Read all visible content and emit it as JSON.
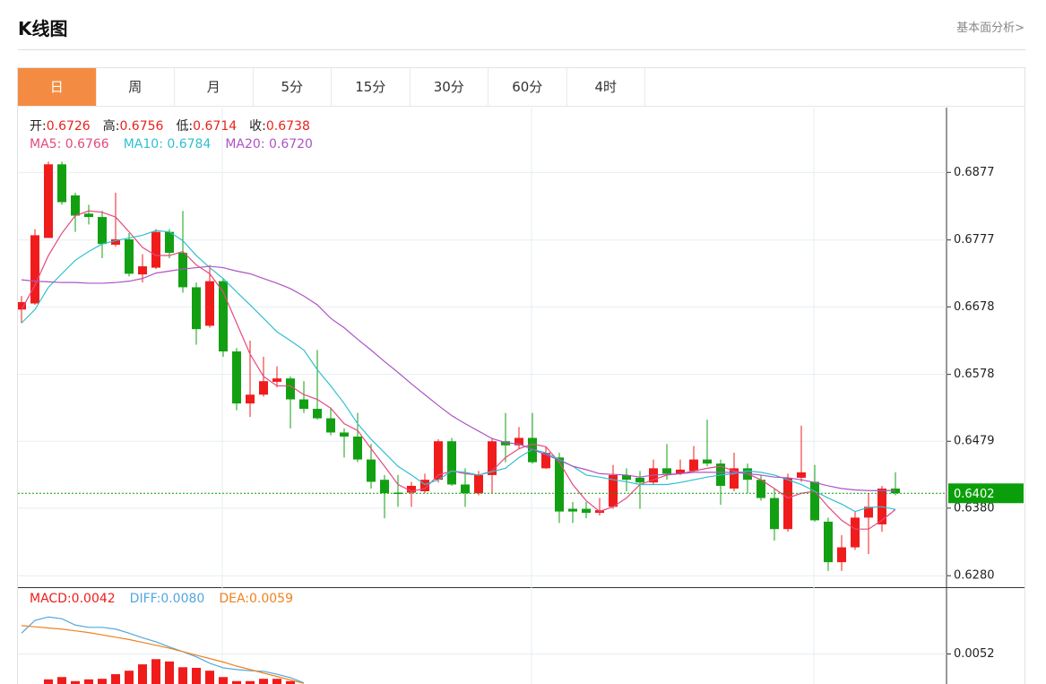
{
  "header": {
    "title": "K线图",
    "link": "基本面分析>"
  },
  "tabs": {
    "items": [
      "日",
      "周",
      "月",
      "5分",
      "15分",
      "30分",
      "60分",
      "4时"
    ],
    "active": 0
  },
  "ohlc_info": [
    {
      "label": "开:",
      "value": "0.6726"
    },
    {
      "label": "高:",
      "value": "0.6756"
    },
    {
      "label": "低:",
      "value": "0.6714"
    },
    {
      "label": "收:",
      "value": "0.6738"
    }
  ],
  "chart_data": [
    {
      "type": "candlestick",
      "up_color": "#f01c1c",
      "down_color": "#12a012",
      "ylim": [
        0.6263,
        0.6973
      ],
      "yticks": [
        {
          "value": 0.628,
          "label": "0.6280"
        },
        {
          "value": 0.638,
          "label": "0.6380"
        },
        0.6479,
        0.6578,
        0.6678,
        0.6777,
        0.6877
      ],
      "grid": true,
      "current_price": 0.6402,
      "current_color": "#0a9f0a",
      "open": [
        0.6674,
        0.6683,
        0.678,
        0.6889,
        0.6843,
        0.6816,
        0.6811,
        0.677,
        0.6778,
        0.6726,
        0.6736,
        0.6789,
        0.6758,
        0.6707,
        0.665,
        0.6716,
        0.6612,
        0.6535,
        0.6548,
        0.6567,
        0.6572,
        0.6541,
        0.6527,
        0.6513,
        0.6492,
        0.6486,
        0.6452,
        0.6422,
        0.6403,
        0.6403,
        0.6405,
        0.6422,
        0.6479,
        0.6415,
        0.6402,
        0.6429,
        0.6479,
        0.6473,
        0.6484,
        0.6439,
        0.6455,
        0.6379,
        0.6379,
        0.6373,
        0.6382,
        0.6429,
        0.6425,
        0.6418,
        0.6439,
        0.6431,
        0.6435,
        0.6452,
        0.6446,
        0.6409,
        0.6439,
        0.6422,
        0.6395,
        0.6349,
        0.6425,
        0.6419,
        0.636,
        0.63,
        0.6322,
        0.6366,
        0.6356,
        0.6409
      ],
      "high": [
        0.6694,
        0.6793,
        0.6893,
        0.6893,
        0.6847,
        0.6829,
        0.682,
        0.6847,
        0.6787,
        0.6756,
        0.6793,
        0.6793,
        0.682,
        0.6714,
        0.674,
        0.672,
        0.6617,
        0.6628,
        0.6604,
        0.659,
        0.6575,
        0.6568,
        0.6614,
        0.6528,
        0.6498,
        0.6521,
        0.6475,
        0.6429,
        0.6429,
        0.6419,
        0.6431,
        0.6482,
        0.6484,
        0.6439,
        0.6435,
        0.6484,
        0.6521,
        0.65,
        0.6521,
        0.6471,
        0.6462,
        0.6389,
        0.6389,
        0.6395,
        0.6444,
        0.6439,
        0.6435,
        0.6452,
        0.6475,
        0.6452,
        0.6472,
        0.6511,
        0.6452,
        0.6462,
        0.6446,
        0.6429,
        0.6409,
        0.6431,
        0.6502,
        0.6444,
        0.6366,
        0.634,
        0.6375,
        0.6402,
        0.6413,
        0.6433
      ],
      "low": [
        0.6654,
        0.6681,
        0.678,
        0.6829,
        0.6789,
        0.68,
        0.675,
        0.6767,
        0.6723,
        0.6714,
        0.6734,
        0.675,
        0.6699,
        0.6622,
        0.6647,
        0.6604,
        0.6525,
        0.6515,
        0.6545,
        0.6559,
        0.6498,
        0.6521,
        0.6511,
        0.6488,
        0.6455,
        0.6448,
        0.6409,
        0.6365,
        0.6382,
        0.6382,
        0.6402,
        0.6418,
        0.6413,
        0.6382,
        0.6399,
        0.6402,
        0.6448,
        0.6467,
        0.6446,
        0.6438,
        0.6358,
        0.6358,
        0.6365,
        0.6369,
        0.6379,
        0.6405,
        0.6379,
        0.6415,
        0.6422,
        0.6429,
        0.6433,
        0.6442,
        0.6385,
        0.6405,
        0.6402,
        0.6391,
        0.6332,
        0.6345,
        0.6419,
        0.636,
        0.6287,
        0.6287,
        0.6318,
        0.6312,
        0.6345,
        0.6399
      ],
      "close": [
        0.6685,
        0.6784,
        0.6889,
        0.6833,
        0.6813,
        0.6811,
        0.6771,
        0.6778,
        0.6727,
        0.6738,
        0.6789,
        0.6758,
        0.6707,
        0.6645,
        0.6716,
        0.6612,
        0.6535,
        0.6548,
        0.6568,
        0.6572,
        0.6541,
        0.6527,
        0.6513,
        0.6492,
        0.6486,
        0.6452,
        0.6419,
        0.6402,
        0.6401,
        0.6413,
        0.6422,
        0.6479,
        0.6415,
        0.6402,
        0.6429,
        0.6479,
        0.6473,
        0.6484,
        0.6448,
        0.6462,
        0.6375,
        0.6375,
        0.6373,
        0.6377,
        0.6429,
        0.6422,
        0.6418,
        0.6439,
        0.6431,
        0.6437,
        0.6452,
        0.6446,
        0.6413,
        0.6439,
        0.6422,
        0.6395,
        0.6349,
        0.6425,
        0.6433,
        0.6362,
        0.63,
        0.6322,
        0.6366,
        0.6382,
        0.6409,
        0.6402
      ],
      "series": [
        {
          "legend": "MA5: 0.6766",
          "color": "#e5497e",
          "values": [
            0.6674,
            0.671,
            0.6754,
            0.6787,
            0.6813,
            0.682,
            0.6818,
            0.6811,
            0.6789,
            0.6766,
            0.6754,
            0.6754,
            0.676,
            0.674,
            0.6727,
            0.67,
            0.6654,
            0.6608,
            0.6575,
            0.6561,
            0.6561,
            0.6548,
            0.6541,
            0.6528,
            0.6505,
            0.6495,
            0.6468,
            0.6442,
            0.6415,
            0.6405,
            0.6409,
            0.6429,
            0.6435,
            0.6431,
            0.6429,
            0.6435,
            0.6455,
            0.6468,
            0.6475,
            0.6471,
            0.6448,
            0.6415,
            0.6391,
            0.6375,
            0.6382,
            0.6395,
            0.6415,
            0.6422,
            0.6429,
            0.6431,
            0.6435,
            0.6439,
            0.6442,
            0.6435,
            0.6431,
            0.6422,
            0.6409,
            0.6395,
            0.6402,
            0.6405,
            0.6382,
            0.6362,
            0.6349,
            0.6349,
            0.6362,
            0.6378
          ]
        },
        {
          "legend": "MA10: 0.6784",
          "color": "#2fc0d0",
          "values": [
            0.6654,
            0.6674,
            0.6707,
            0.6727,
            0.6747,
            0.676,
            0.6771,
            0.6776,
            0.678,
            0.6784,
            0.6791,
            0.6789,
            0.6776,
            0.6754,
            0.6736,
            0.672,
            0.67,
            0.6681,
            0.6661,
            0.6641,
            0.6628,
            0.6614,
            0.6585,
            0.6561,
            0.6535,
            0.6505,
            0.6482,
            0.6462,
            0.6442,
            0.6429,
            0.6415,
            0.6422,
            0.6435,
            0.6433,
            0.6429,
            0.6434,
            0.6439,
            0.6455,
            0.6467,
            0.6462,
            0.6452,
            0.6442,
            0.6429,
            0.6426,
            0.6422,
            0.6419,
            0.6415,
            0.6415,
            0.6415,
            0.6418,
            0.6422,
            0.6426,
            0.6429,
            0.6431,
            0.6435,
            0.6433,
            0.6429,
            0.6422,
            0.6415,
            0.6405,
            0.6395,
            0.6386,
            0.6375,
            0.6381,
            0.6382,
            0.6378
          ]
        },
        {
          "legend": "MA20: 0.6720",
          "color": "#ad55c4",
          "values": [
            0.6718,
            0.6716,
            0.6715,
            0.6714,
            0.6714,
            0.6713,
            0.6713,
            0.6714,
            0.6716,
            0.672,
            0.6728,
            0.6731,
            0.6734,
            0.6736,
            0.6738,
            0.6736,
            0.6731,
            0.6727,
            0.672,
            0.6713,
            0.6705,
            0.6694,
            0.6681,
            0.6661,
            0.6647,
            0.663,
            0.6614,
            0.6597,
            0.6581,
            0.6564,
            0.6548,
            0.6532,
            0.6517,
            0.6505,
            0.6494,
            0.6483,
            0.6477,
            0.6475,
            0.6467,
            0.6459,
            0.6451,
            0.6442,
            0.6437,
            0.6431,
            0.643,
            0.6429,
            0.6426,
            0.6429,
            0.643,
            0.6431,
            0.6433,
            0.6433,
            0.6433,
            0.6433,
            0.6431,
            0.6429,
            0.6426,
            0.6425,
            0.6422,
            0.6418,
            0.6413,
            0.6409,
            0.6407,
            0.6406,
            0.6406,
            0.6406
          ]
        }
      ]
    },
    {
      "type": "macd",
      "ylim": [
        0,
        0.0166
      ],
      "yticks": [
        0.0052
      ],
      "grid": true,
      "bars": {
        "legend": "MACD:0.0042",
        "color": "#f01c1c",
        "values": [
          null,
          null,
          0.0008,
          0.0012,
          0.0005,
          0.0008,
          0.0009,
          0.0017,
          0.0023,
          0.0034,
          0.0043,
          0.0039,
          0.0029,
          0.0028,
          0.0023,
          0.0012,
          0.0005,
          0.0005,
          0.0009,
          0.0009,
          0.0005,
          null
        ]
      },
      "series": [
        {
          "legend": "DIFF:0.0080",
          "color": "#52a7e0",
          "values": [
            0.0088,
            0.011,
            0.0116,
            0.0113,
            0.0102,
            0.0098,
            0.0098,
            0.0095,
            0.0088,
            0.008,
            0.0073,
            0.0064,
            0.0056,
            0.0047,
            0.0036,
            0.0028,
            0.0025,
            0.0023,
            0.0022,
            0.0017,
            0.0011,
            0.0002
          ]
        },
        {
          "legend": "DEA:0.0059",
          "color": "#f0821e",
          "values": [
            0.0101,
            0.0099,
            0.0097,
            0.0095,
            0.0092,
            0.0089,
            0.0085,
            0.0081,
            0.0077,
            0.0072,
            0.0067,
            0.0062,
            0.0056,
            0.005,
            0.0044,
            0.0038,
            0.0031,
            0.0025,
            0.0019,
            0.0013,
            0.0007,
            0.0001
          ]
        }
      ]
    }
  ]
}
